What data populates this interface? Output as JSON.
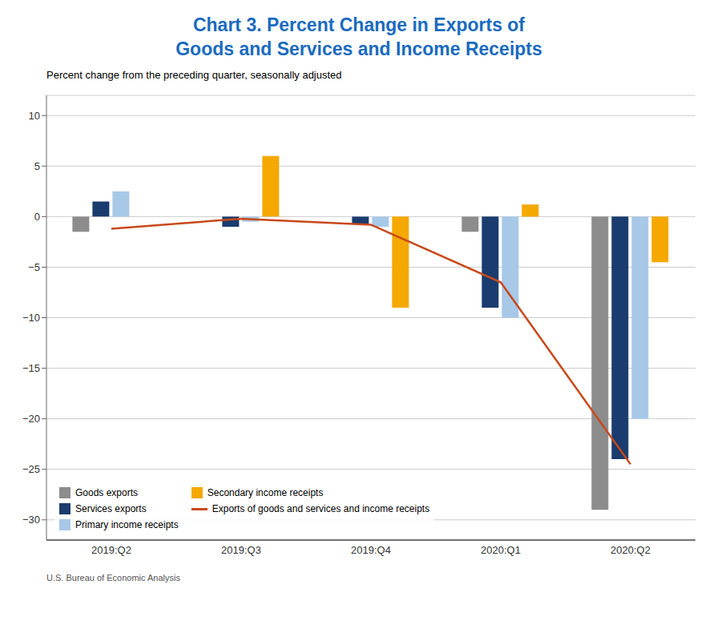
{
  "chart_data": {
    "type": "bar",
    "title": "Chart 3. Percent Change in Exports of\nGoods and Services and Income Receipts",
    "subtitle": "Percent change from the preceding quarter, seasonally adjusted",
    "source": "U.S. Bureau of Economic Analysis",
    "categories": [
      "2019:Q2",
      "2019:Q3",
      "2019:Q4",
      "2020:Q1",
      "2020:Q2"
    ],
    "series": [
      {
        "name": "Goods exports",
        "type": "bar",
        "color": "#8c8c8c",
        "values": [
          -1.5,
          0.0,
          0.0,
          -1.5,
          -29.0
        ]
      },
      {
        "name": "Services exports",
        "type": "bar",
        "color": "#1a3c6e",
        "values": [
          1.5,
          -1.0,
          -0.7,
          -9.0,
          -24.0
        ]
      },
      {
        "name": "Primary income receipts",
        "type": "bar",
        "color": "#a8c8e8",
        "values": [
          2.5,
          -0.5,
          -1.0,
          -10.0,
          -20.0
        ]
      },
      {
        "name": "Secondary income receipts",
        "type": "bar",
        "color": "#f5a800",
        "values": [
          0.0,
          6.0,
          -9.0,
          1.2,
          -4.5
        ]
      },
      {
        "name": "Exports of goods and services and income receipts",
        "type": "line",
        "color": "#c8491a",
        "values": [
          -1.2,
          -0.2,
          -0.8,
          -6.5,
          -24.5
        ]
      }
    ],
    "ylim": [
      -32,
      12
    ],
    "yticks": [
      10,
      5,
      0,
      {
        "value": -5,
        "label": "−5"
      },
      {
        "value": -10,
        "label": "−10"
      },
      {
        "value": -15,
        "label": "−15"
      },
      {
        "value": -20,
        "label": "−20"
      },
      {
        "value": -25,
        "label": "−25"
      },
      {
        "value": -30,
        "label": "−30"
      }
    ],
    "grid": true,
    "legend": "lower left"
  }
}
